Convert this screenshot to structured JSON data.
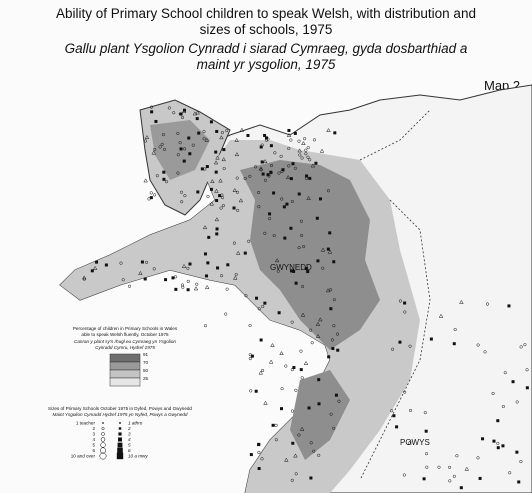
{
  "header": {
    "title_lines": [
      "Ability of Primary School children to speak Welsh, with distribution and",
      "sizes of schools,  1975"
    ],
    "subtitle_lines": [
      "Gallu plant Ysgolion Cynradd i siarad  Cymraeg, gyda dosbarthiad a",
      "maint yr ysgolion, 1975"
    ],
    "map_label": "Map 2"
  },
  "regions": [
    "GWYNEDD",
    "POWYS"
  ],
  "legend_percent": {
    "title_lines": [
      "Percentage of children in Primary Schools in Wales",
      "able to speak Welsh fluently, October 1975",
      "Canran y plant sy'n rhugl eu Cymraeg yn Ysgolion",
      "Cynradd Cymru, Hydref 1975"
    ],
    "ticks": [
      "91",
      "70",
      "50",
      "25"
    ]
  },
  "legend_sizes": {
    "title_lines": [
      "Sizes of Primary Schools October 1975 in Dyfed, Powys and Gwynedd",
      "Maint Ysgolion Cynradd Hydref 1975 yn Nyfed, Powys a Gwynedd"
    ],
    "items": [
      {
        "en": "1 teacher",
        "cy": "1 athro"
      },
      {
        "en": "2",
        "cy": "2"
      },
      {
        "en": "3",
        "cy": "3"
      },
      {
        "en": "4",
        "cy": "4"
      },
      {
        "en": "5",
        "cy": "5"
      },
      {
        "en": "6",
        "cy": "6"
      },
      {
        "en": "10 and over",
        "cy": "10 a mwy"
      }
    ]
  }
}
